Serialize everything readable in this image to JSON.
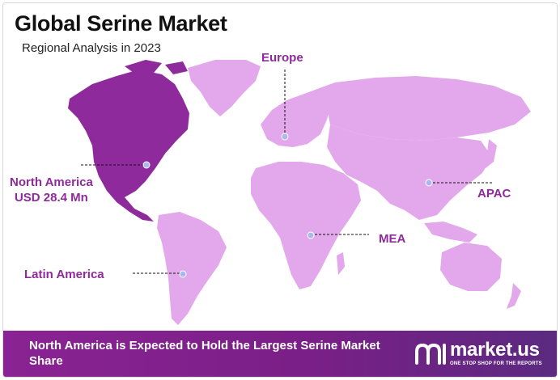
{
  "header": {
    "title": "Global Serine Market",
    "subtitle": "Regional Analysis in 2023"
  },
  "regions": {
    "europe": "Europe",
    "north_america": "North America",
    "north_america_value": "USD 28.4 Mn",
    "apac": "APAC",
    "mea": "MEA",
    "latin_america": "Latin America"
  },
  "footer": {
    "text": "North America is Expected to Hold the Largest Serine Market Share"
  },
  "brand": {
    "name": "market.us",
    "tagline": "ONE STOP SHOP FOR THE REPORTS"
  },
  "colors": {
    "highlight_region": "#8e2a9b",
    "other_regions": "#e2a8eb",
    "label_text": "#8e2a9b",
    "footer_bg": "#7a1f87",
    "marker": "#a9b8f0"
  }
}
